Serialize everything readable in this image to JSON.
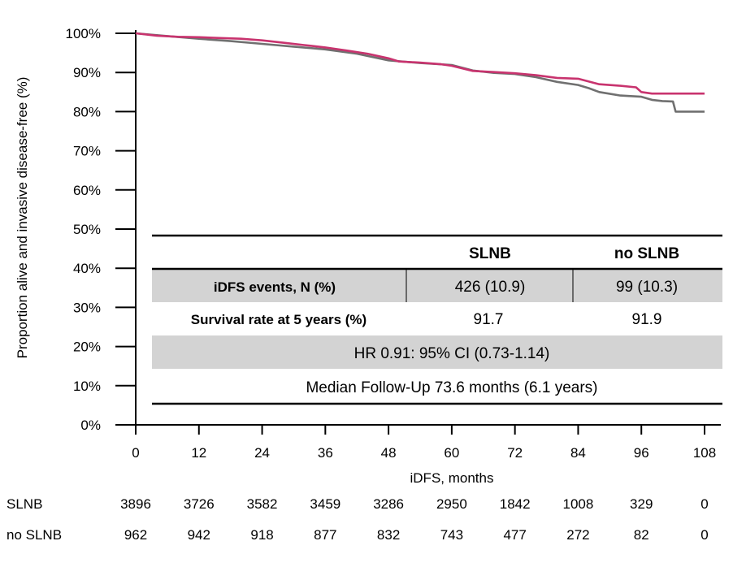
{
  "chart_data": {
    "type": "line",
    "xlabel": "iDFS, months",
    "ylabel": "Proportion alive and invasive disease-free (%)",
    "xlim": [
      0,
      108
    ],
    "ylim": [
      0,
      100
    ],
    "x_ticks": [
      "0",
      "12",
      "24",
      "36",
      "48",
      "60",
      "72",
      "84",
      "96",
      "108"
    ],
    "y_ticks": [
      "0%",
      "10%",
      "20%",
      "30%",
      "40%",
      "50%",
      "60%",
      "70%",
      "80%",
      "90%",
      "100%"
    ],
    "grid": false,
    "series": [
      {
        "name": "SLNB",
        "color": "#c8336e",
        "points": [
          [
            0,
            100
          ],
          [
            4,
            99.4
          ],
          [
            8,
            99.1
          ],
          [
            12,
            99.0
          ],
          [
            16,
            98.8
          ],
          [
            20,
            98.6
          ],
          [
            24,
            98.2
          ],
          [
            28,
            97.6
          ],
          [
            32,
            97.0
          ],
          [
            36,
            96.4
          ],
          [
            40,
            95.6
          ],
          [
            44,
            94.8
          ],
          [
            48,
            93.6
          ],
          [
            50,
            92.8
          ],
          [
            54,
            92.5
          ],
          [
            58,
            92.1
          ],
          [
            60,
            91.7
          ],
          [
            64,
            90.4
          ],
          [
            68,
            90.1
          ],
          [
            72,
            89.8
          ],
          [
            76,
            89.3
          ],
          [
            80,
            88.6
          ],
          [
            84,
            88.4
          ],
          [
            88,
            87.0
          ],
          [
            92,
            86.6
          ],
          [
            95,
            86.2
          ],
          [
            96,
            85.0
          ],
          [
            98,
            84.6
          ],
          [
            102,
            84.6
          ],
          [
            108,
            84.6
          ]
        ]
      },
      {
        "name": "no SLNB",
        "color": "#707070",
        "points": [
          [
            0,
            100
          ],
          [
            6,
            99.3
          ],
          [
            12,
            98.6
          ],
          [
            18,
            98.0
          ],
          [
            24,
            97.3
          ],
          [
            30,
            96.6
          ],
          [
            36,
            95.9
          ],
          [
            42,
            94.8
          ],
          [
            48,
            93.1
          ],
          [
            54,
            92.4
          ],
          [
            60,
            91.9
          ],
          [
            64,
            90.5
          ],
          [
            68,
            89.9
          ],
          [
            72,
            89.6
          ],
          [
            76,
            88.8
          ],
          [
            80,
            87.6
          ],
          [
            84,
            86.8
          ],
          [
            86,
            86.0
          ],
          [
            88,
            85.0
          ],
          [
            92,
            84.1
          ],
          [
            96,
            83.8
          ],
          [
            98,
            83.0
          ],
          [
            100,
            82.7
          ],
          [
            102,
            82.6
          ],
          [
            102.5,
            80.0
          ],
          [
            108,
            80.0
          ]
        ]
      }
    ],
    "risk_table": {
      "rows": [
        {
          "label": "SLNB",
          "values": [
            "3896",
            "3726",
            "3582",
            "3459",
            "3286",
            "2950",
            "1842",
            "1008",
            "329",
            "0"
          ]
        },
        {
          "label": "no SLNB",
          "values": [
            "962",
            "942",
            "918",
            "877",
            "832",
            "743",
            "477",
            "272",
            "82",
            "0"
          ]
        }
      ]
    },
    "inset_table": {
      "headers": [
        "",
        "SLNB",
        "no SLNB"
      ],
      "rows": [
        [
          "iDFS events, N (%)",
          "426 (10.9)",
          "99 (10.3)"
        ],
        [
          "Survival rate at 5 years (%)",
          "91.7",
          "91.9"
        ]
      ],
      "hr_text": "HR 0.91: 95% CI (0.73-1.14)",
      "followup_text": "Median Follow-Up 73.6 months (6.1 years)"
    }
  }
}
